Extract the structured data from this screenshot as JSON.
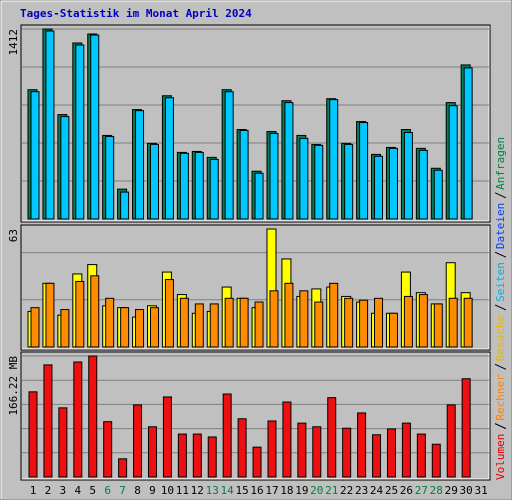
{
  "chart_data": [
    {
      "type": "bar",
      "title": "Tages-Statistik im Monat April 2024",
      "ylim": [
        0,
        1412
      ],
      "yticks": [
        1412
      ],
      "series": [
        {
          "name": "Anfragen",
          "color": "#00805c",
          "values": [
            961,
            1412,
            776,
            1308,
            1375,
            621,
            222,
            813,
            562,
            916,
            495,
            502,
            458,
            961,
            665,
            355,
            650,
            879,
            621,
            554,
            894,
            562,
            724,
            480,
            532,
            665,
            525,
            377,
            865,
            1145,
            0
          ]
        },
        {
          "name": "Seiten",
          "color": "#00c8ff",
          "values": [
            946,
            1397,
            761,
            1293,
            1367,
            613,
            200,
            805,
            554,
            901,
            488,
            495,
            443,
            946,
            658,
            340,
            636,
            865,
            599,
            547,
            887,
            554,
            717,
            466,
            525,
            643,
            510,
            362,
            842,
            1123,
            0
          ]
        }
      ]
    },
    {
      "type": "bar",
      "ylim": [
        0,
        63
      ],
      "yticks": [
        63
      ],
      "series": [
        {
          "name": "Besuche",
          "color": "#ffff00",
          "values": [
            19,
            34,
            17,
            39,
            44,
            22,
            21,
            16,
            22,
            40,
            28,
            18,
            19,
            32,
            26,
            21,
            63,
            47,
            27,
            31,
            32,
            27,
            24,
            18,
            18,
            40,
            29,
            23,
            45,
            29,
            0
          ]
        },
        {
          "name": "Rechner",
          "color": "#ff8c00",
          "values": [
            21,
            34,
            20,
            35,
            38,
            26,
            21,
            20,
            21,
            36,
            26,
            23,
            23,
            26,
            26,
            24,
            30,
            34,
            30,
            24,
            34,
            26,
            25,
            26,
            18,
            27,
            28,
            23,
            26,
            26,
            0
          ]
        }
      ]
    },
    {
      "type": "bar",
      "ylim": [
        0,
        166.22
      ],
      "yticks": [
        {
          "value": 166.22,
          "label": "166.22 MB"
        }
      ],
      "categories": [
        "1",
        "2",
        "3",
        "4",
        "5",
        "6",
        "7",
        "8",
        "9",
        "10",
        "11",
        "12",
        "13",
        "14",
        "15",
        "16",
        "17",
        "18",
        "19",
        "20",
        "21",
        "22",
        "23",
        "24",
        "25",
        "26",
        "27",
        "28",
        "29",
        "30",
        "31"
      ],
      "category_colors": [
        "#000",
        "#000",
        "#000",
        "#000",
        "#000",
        "#008040",
        "#008040",
        "#000",
        "#000",
        "#000",
        "#000",
        "#000",
        "#008040",
        "#008040",
        "#000",
        "#000",
        "#000",
        "#000",
        "#000",
        "#008040",
        "#008040",
        "#000",
        "#000",
        "#000",
        "#000",
        "#000",
        "#008040",
        "#008040",
        "#000",
        "#000",
        "#000"
      ],
      "series": [
        {
          "name": "Volumen",
          "color": "#ee1010",
          "values": [
            117,
            154,
            95,
            158,
            166.22,
            76,
            25,
            99,
            69,
            110,
            59,
            59,
            55,
            114,
            80,
            41,
            77,
            103,
            74,
            69,
            109,
            67,
            88,
            58,
            66,
            74,
            59,
            45,
            99,
            135,
            0
          ]
        }
      ]
    },
    {
      "type": "legend",
      "items": [
        {
          "name": "Volumen",
          "color": "#e00000"
        },
        {
          "name": "Rechner",
          "color": "#ff8000"
        },
        {
          "name": "Besuche",
          "color": "#e8b800"
        },
        {
          "name": "Seiten",
          "color": "#00b0e0"
        },
        {
          "name": "Dateien",
          "color": "#0040ff"
        },
        {
          "name": "Anfragen",
          "color": "#008040"
        }
      ]
    }
  ]
}
